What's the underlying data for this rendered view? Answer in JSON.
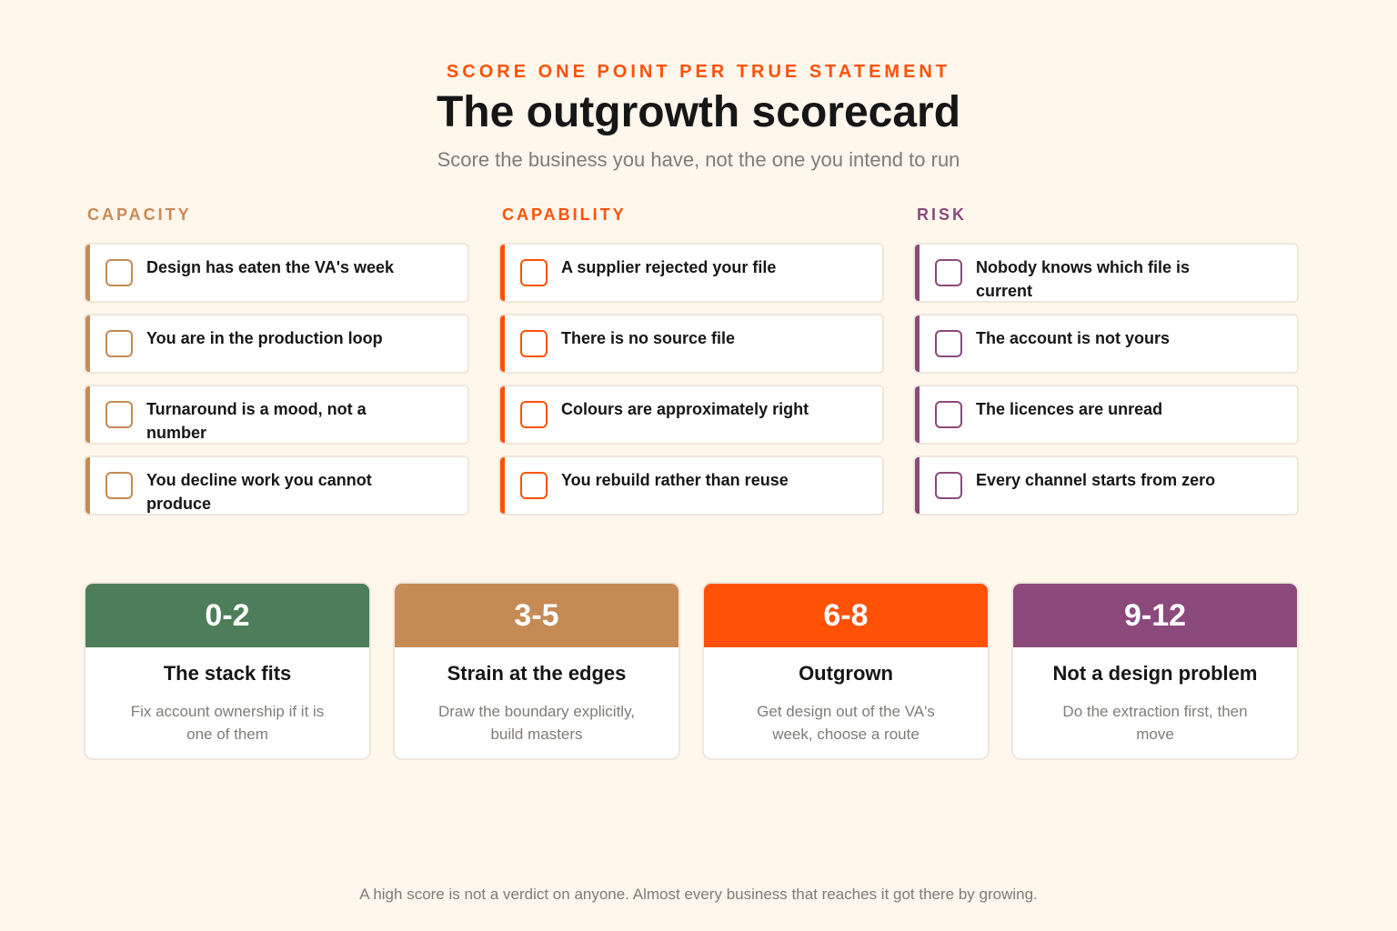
{
  "header": {
    "eyebrow": "SCORE ONE POINT PER TRUE STATEMENT",
    "title": "The outgrowth scorecard",
    "subtitle": "Score the business you have, not the one you intend to run"
  },
  "colors": {
    "background": "#fff6ec",
    "accent": "#ff5207",
    "capacity": "#c68a55",
    "capability": "#ff5207",
    "risk": "#8b4a7b",
    "band_0_2": "#4d7d5a",
    "band_3_5": "#c68a55",
    "band_6_8": "#ff5207",
    "band_9_12": "#8b4a7b"
  },
  "columns": [
    {
      "title": "CAPACITY",
      "items": [
        {
          "label": "Design has eaten the VA's week",
          "checked": false
        },
        {
          "label": "You are in the production loop",
          "checked": false
        },
        {
          "label": "Turnaround is a mood, not a number",
          "checked": false
        },
        {
          "label": "You decline work you cannot produce",
          "checked": false
        }
      ]
    },
    {
      "title": "CAPABILITY",
      "items": [
        {
          "label": "A supplier rejected your file",
          "checked": false
        },
        {
          "label": "There is no source file",
          "checked": false
        },
        {
          "label": "Colours are approximately right",
          "checked": false
        },
        {
          "label": "You rebuild rather than reuse",
          "checked": false
        }
      ]
    },
    {
      "title": "RISK",
      "items": [
        {
          "label": "Nobody knows which file is current",
          "checked": false
        },
        {
          "label": "The account is not yours",
          "checked": false
        },
        {
          "label": "The licences are unread",
          "checked": false
        },
        {
          "label": "Every channel starts from zero",
          "checked": false
        }
      ]
    }
  ],
  "bands": [
    {
      "range": "0-2",
      "title": "The stack fits",
      "description": "Fix account ownership if it is one of them"
    },
    {
      "range": "3-5",
      "title": "Strain at the edges",
      "description": "Draw the boundary explicitly, build masters"
    },
    {
      "range": "6-8",
      "title": "Outgrown",
      "description": "Get design out of the VA's week, choose a route"
    },
    {
      "range": "9-12",
      "title": "Not a design problem",
      "description": "Do the extraction first, then move"
    }
  ],
  "footer": "A high score is not a verdict on anyone. Almost every business that reaches it got there by growing."
}
